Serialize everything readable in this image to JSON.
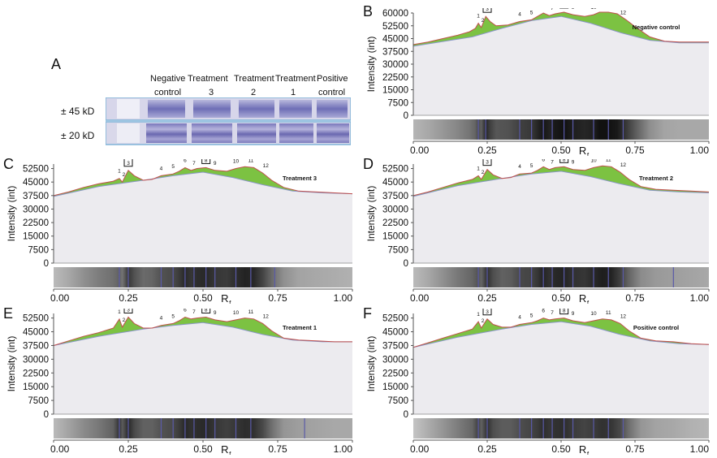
{
  "figure": {
    "gel": {
      "letter": "A",
      "lanes": [
        {
          "line1": "Negative",
          "line2": "control"
        },
        {
          "line1": "Treatment",
          "line2": "3"
        },
        {
          "line1": "Treatment",
          "line2": "2"
        },
        {
          "line1": "Treatment",
          "line2": "1"
        },
        {
          "line1": "Positive",
          "line2": "control"
        }
      ],
      "band_labels": [
        "± 45 kD",
        "± 20 kD"
      ]
    }
  },
  "colors": {
    "peak_fill": "#7cc242",
    "baseline_fill": "#ecebef",
    "profile_line": "#c0504d",
    "baseline_line": "#8a97c7",
    "axis": "#555555",
    "gel_stain": "#5a5aa8"
  },
  "chart_data": [
    {
      "type": "area",
      "panel": "B",
      "title": "Negative control",
      "xlabel": "R",
      "xlabel_sub": "f",
      "ylabel": "Intensity (int)",
      "xlim": [
        0,
        1
      ],
      "ylim": [
        0,
        60000
      ],
      "xticks": [
        "0.00",
        "0.25",
        "0.50",
        "0.75",
        "1.00"
      ],
      "yticks": [
        "60000",
        "52500",
        "45000",
        "37500",
        "30000",
        "22500",
        "15000",
        "7500",
        "0"
      ],
      "boxed_peaks": [
        "3",
        "8"
      ],
      "peaks": [
        {
          "label": "1",
          "x": 0.22
        },
        {
          "label": "2",
          "x": 0.235
        },
        {
          "label": "3",
          "x": 0.25
        },
        {
          "label": "4",
          "x": 0.36
        },
        {
          "label": "5",
          "x": 0.4
        },
        {
          "label": "6",
          "x": 0.44
        },
        {
          "label": "7",
          "x": 0.47
        },
        {
          "label": "8",
          "x": 0.51
        },
        {
          "label": "9",
          "x": 0.54
        },
        {
          "label": "10",
          "x": 0.61
        },
        {
          "label": "11",
          "x": 0.66
        },
        {
          "label": "12",
          "x": 0.71
        }
      ],
      "profile": [
        [
          0,
          41500
        ],
        [
          0.05,
          43000
        ],
        [
          0.1,
          45000
        ],
        [
          0.15,
          47000
        ],
        [
          0.19,
          49000
        ],
        [
          0.21,
          51000
        ],
        [
          0.22,
          54000
        ],
        [
          0.23,
          51500
        ],
        [
          0.245,
          58000
        ],
        [
          0.26,
          55000
        ],
        [
          0.28,
          52500
        ],
        [
          0.32,
          53000
        ],
        [
          0.36,
          55000
        ],
        [
          0.4,
          56000
        ],
        [
          0.42,
          58000
        ],
        [
          0.44,
          60000
        ],
        [
          0.46,
          58500
        ],
        [
          0.48,
          59500
        ],
        [
          0.51,
          60500
        ],
        [
          0.54,
          59000
        ],
        [
          0.58,
          58000
        ],
        [
          0.61,
          59000
        ],
        [
          0.63,
          60500
        ],
        [
          0.66,
          60500
        ],
        [
          0.69,
          59500
        ],
        [
          0.72,
          56000
        ],
        [
          0.75,
          52000
        ],
        [
          0.8,
          46000
        ],
        [
          0.85,
          43500
        ],
        [
          0.9,
          43000
        ],
        [
          0.95,
          43000
        ],
        [
          1.0,
          43000
        ]
      ],
      "baseline": [
        [
          0,
          40500
        ],
        [
          0.2,
          46000
        ],
        [
          0.3,
          51000
        ],
        [
          0.4,
          55500
        ],
        [
          0.5,
          58000
        ],
        [
          0.6,
          54000
        ],
        [
          0.7,
          48500
        ],
        [
          0.8,
          44000
        ],
        [
          0.9,
          42500
        ],
        [
          1.0,
          42500
        ]
      ],
      "lane_bands": [
        0.22,
        0.245,
        0.36,
        0.4,
        0.44,
        0.47,
        0.51,
        0.54,
        0.61,
        0.66,
        0.71
      ]
    },
    {
      "type": "area",
      "panel": "C",
      "title": "Treatment 3",
      "xlabel": "R",
      "xlabel_sub": "f",
      "ylabel": "Intensity (int)",
      "xlim": [
        0,
        1
      ],
      "ylim": [
        0,
        55000
      ],
      "xticks": [
        "0.00",
        "0.25",
        "0.50",
        "0.75",
        "1.00"
      ],
      "yticks": [
        "52500",
        "45000",
        "37500",
        "30000",
        "22500",
        "15000",
        "7500",
        "0"
      ],
      "boxed_peaks": [
        "3",
        "8"
      ],
      "peaks": [
        {
          "label": "1",
          "x": 0.22
        },
        {
          "label": "2",
          "x": 0.235
        },
        {
          "label": "3",
          "x": 0.25
        },
        {
          "label": "4",
          "x": 0.36
        },
        {
          "label": "5",
          "x": 0.4
        },
        {
          "label": "6",
          "x": 0.44
        },
        {
          "label": "7",
          "x": 0.47
        },
        {
          "label": "8",
          "x": 0.51
        },
        {
          "label": "9",
          "x": 0.54
        },
        {
          "label": "10",
          "x": 0.61
        },
        {
          "label": "11",
          "x": 0.66
        },
        {
          "label": "12",
          "x": 0.71
        }
      ],
      "profile": [
        [
          0,
          37500
        ],
        [
          0.05,
          39500
        ],
        [
          0.1,
          42000
        ],
        [
          0.15,
          44000
        ],
        [
          0.2,
          45500
        ],
        [
          0.22,
          47000
        ],
        [
          0.23,
          45000
        ],
        [
          0.25,
          51500
        ],
        [
          0.27,
          48500
        ],
        [
          0.3,
          46000
        ],
        [
          0.33,
          46500
        ],
        [
          0.36,
          48500
        ],
        [
          0.4,
          49500
        ],
        [
          0.42,
          51000
        ],
        [
          0.44,
          53000
        ],
        [
          0.46,
          51500
        ],
        [
          0.48,
          52500
        ],
        [
          0.51,
          53000
        ],
        [
          0.54,
          51500
        ],
        [
          0.58,
          51000
        ],
        [
          0.61,
          52500
        ],
        [
          0.64,
          53500
        ],
        [
          0.67,
          53000
        ],
        [
          0.7,
          50000
        ],
        [
          0.73,
          46000
        ],
        [
          0.77,
          42000
        ],
        [
          0.82,
          40000
        ],
        [
          0.88,
          39500
        ],
        [
          0.94,
          39000
        ],
        [
          1.0,
          38500
        ]
      ],
      "baseline": [
        [
          0,
          37000
        ],
        [
          0.15,
          42500
        ],
        [
          0.3,
          46000
        ],
        [
          0.4,
          48500
        ],
        [
          0.5,
          50500
        ],
        [
          0.6,
          47500
        ],
        [
          0.7,
          43500
        ],
        [
          0.8,
          40000
        ],
        [
          0.9,
          39000
        ],
        [
          1.0,
          38500
        ]
      ],
      "lane_bands": [
        0.22,
        0.25,
        0.36,
        0.4,
        0.44,
        0.47,
        0.51,
        0.54,
        0.61,
        0.66,
        0.74
      ]
    },
    {
      "type": "area",
      "panel": "D",
      "title": "Treatment 2",
      "xlabel": "R",
      "xlabel_sub": "f",
      "ylabel": "Intensity (int)",
      "xlim": [
        0,
        1
      ],
      "ylim": [
        0,
        55000
      ],
      "xticks": [
        "0.00",
        "0.25",
        "0.50",
        "0.75",
        "1.00"
      ],
      "yticks": [
        "52500",
        "45000",
        "37500",
        "30000",
        "22500",
        "15000",
        "7500",
        "0"
      ],
      "boxed_peaks": [
        "3",
        "8"
      ],
      "peaks": [
        {
          "label": "1",
          "x": 0.22
        },
        {
          "label": "2",
          "x": 0.235
        },
        {
          "label": "3",
          "x": 0.25
        },
        {
          "label": "4",
          "x": 0.36
        },
        {
          "label": "5",
          "x": 0.4
        },
        {
          "label": "6",
          "x": 0.44
        },
        {
          "label": "7",
          "x": 0.47
        },
        {
          "label": "8",
          "x": 0.51
        },
        {
          "label": "9",
          "x": 0.54
        },
        {
          "label": "10",
          "x": 0.61
        },
        {
          "label": "11",
          "x": 0.66
        },
        {
          "label": "12",
          "x": 0.71
        }
      ],
      "profile": [
        [
          0,
          37500
        ],
        [
          0.05,
          39500
        ],
        [
          0.1,
          42000
        ],
        [
          0.15,
          44500
        ],
        [
          0.2,
          46500
        ],
        [
          0.22,
          48500
        ],
        [
          0.23,
          46500
        ],
        [
          0.25,
          52000
        ],
        [
          0.27,
          49000
        ],
        [
          0.3,
          47000
        ],
        [
          0.33,
          47500
        ],
        [
          0.36,
          49500
        ],
        [
          0.4,
          50000
        ],
        [
          0.42,
          51500
        ],
        [
          0.44,
          53500
        ],
        [
          0.46,
          52000
        ],
        [
          0.48,
          53000
        ],
        [
          0.51,
          53500
        ],
        [
          0.54,
          52000
        ],
        [
          0.58,
          51500
        ],
        [
          0.61,
          53000
        ],
        [
          0.64,
          54000
        ],
        [
          0.67,
          53500
        ],
        [
          0.7,
          50500
        ],
        [
          0.73,
          46500
        ],
        [
          0.77,
          42500
        ],
        [
          0.82,
          41000
        ],
        [
          0.88,
          40500
        ],
        [
          0.94,
          40000
        ],
        [
          1.0,
          39500
        ]
      ],
      "baseline": [
        [
          0,
          37000
        ],
        [
          0.15,
          43000
        ],
        [
          0.3,
          47000
        ],
        [
          0.4,
          49500
        ],
        [
          0.5,
          51000
        ],
        [
          0.6,
          48000
        ],
        [
          0.7,
          44000
        ],
        [
          0.8,
          40500
        ],
        [
          0.9,
          39500
        ],
        [
          1.0,
          39000
        ]
      ],
      "lane_bands": [
        0.22,
        0.25,
        0.36,
        0.4,
        0.44,
        0.47,
        0.51,
        0.54,
        0.61,
        0.66,
        0.71,
        0.88
      ]
    },
    {
      "type": "area",
      "panel": "E",
      "title": "Treatment 1",
      "xlabel": "R",
      "xlabel_sub": "f",
      "ylabel": "Intensity (int)",
      "xlim": [
        0,
        1
      ],
      "ylim": [
        0,
        55000
      ],
      "xticks": [
        "0.00",
        "0.25",
        "0.50",
        "0.75",
        "1.00"
      ],
      "yticks": [
        "52500",
        "45000",
        "37500",
        "30000",
        "22500",
        "15000",
        "7500",
        "0"
      ],
      "boxed_peaks": [
        "3",
        "8"
      ],
      "peaks": [
        {
          "label": "1",
          "x": 0.22
        },
        {
          "label": "2",
          "x": 0.235
        },
        {
          "label": "3",
          "x": 0.25
        },
        {
          "label": "4",
          "x": 0.36
        },
        {
          "label": "5",
          "x": 0.4
        },
        {
          "label": "6",
          "x": 0.44
        },
        {
          "label": "7",
          "x": 0.47
        },
        {
          "label": "8",
          "x": 0.51
        },
        {
          "label": "9",
          "x": 0.54
        },
        {
          "label": "10",
          "x": 0.61
        },
        {
          "label": "11",
          "x": 0.66
        },
        {
          "label": "12",
          "x": 0.71
        }
      ],
      "profile": [
        [
          0,
          37500
        ],
        [
          0.05,
          40000
        ],
        [
          0.1,
          42500
        ],
        [
          0.15,
          44500
        ],
        [
          0.2,
          47000
        ],
        [
          0.22,
          52000
        ],
        [
          0.23,
          47500
        ],
        [
          0.25,
          53000
        ],
        [
          0.27,
          49500
        ],
        [
          0.3,
          47000
        ],
        [
          0.33,
          47000
        ],
        [
          0.36,
          48500
        ],
        [
          0.4,
          49500
        ],
        [
          0.42,
          51000
        ],
        [
          0.44,
          53000
        ],
        [
          0.46,
          52000
        ],
        [
          0.48,
          52500
        ],
        [
          0.51,
          53000
        ],
        [
          0.54,
          51500
        ],
        [
          0.58,
          50500
        ],
        [
          0.61,
          51500
        ],
        [
          0.64,
          52500
        ],
        [
          0.67,
          52000
        ],
        [
          0.7,
          49500
        ],
        [
          0.73,
          45500
        ],
        [
          0.77,
          41500
        ],
        [
          0.82,
          40500
        ],
        [
          0.88,
          40000
        ],
        [
          0.94,
          39500
        ],
        [
          1.0,
          39500
        ]
      ],
      "baseline": [
        [
          0,
          37500
        ],
        [
          0.15,
          42500
        ],
        [
          0.3,
          46500
        ],
        [
          0.4,
          48500
        ],
        [
          0.5,
          50000
        ],
        [
          0.6,
          47500
        ],
        [
          0.7,
          43500
        ],
        [
          0.8,
          40500
        ],
        [
          0.9,
          39500
        ],
        [
          1.0,
          39500
        ]
      ],
      "lane_bands": [
        0.22,
        0.25,
        0.36,
        0.4,
        0.44,
        0.47,
        0.51,
        0.54,
        0.61,
        0.66,
        0.84
      ]
    },
    {
      "type": "area",
      "panel": "F",
      "title": "Positive control",
      "xlabel": "R",
      "xlabel_sub": "f",
      "ylabel": "Intensity (int)",
      "xlim": [
        0,
        1
      ],
      "ylim": [
        0,
        55000
      ],
      "xticks": [
        "0.00",
        "0.25",
        "0.50",
        "0.75",
        "1.00"
      ],
      "yticks": [
        "52500",
        "45000",
        "37500",
        "30000",
        "22500",
        "15000",
        "7500",
        "0"
      ],
      "boxed_peaks": [
        "3",
        "8"
      ],
      "peaks": [
        {
          "label": "1",
          "x": 0.22
        },
        {
          "label": "2",
          "x": 0.235
        },
        {
          "label": "3",
          "x": 0.25
        },
        {
          "label": "4",
          "x": 0.36
        },
        {
          "label": "5",
          "x": 0.4
        },
        {
          "label": "6",
          "x": 0.44
        },
        {
          "label": "7",
          "x": 0.47
        },
        {
          "label": "8",
          "x": 0.51
        },
        {
          "label": "9",
          "x": 0.54
        },
        {
          "label": "10",
          "x": 0.61
        },
        {
          "label": "11",
          "x": 0.66
        },
        {
          "label": "12",
          "x": 0.71
        }
      ],
      "profile": [
        [
          0,
          36500
        ],
        [
          0.05,
          39000
        ],
        [
          0.1,
          41500
        ],
        [
          0.15,
          44000
        ],
        [
          0.2,
          46500
        ],
        [
          0.22,
          50500
        ],
        [
          0.23,
          47000
        ],
        [
          0.25,
          52000
        ],
        [
          0.27,
          49000
        ],
        [
          0.3,
          47500
        ],
        [
          0.33,
          47500
        ],
        [
          0.36,
          49000
        ],
        [
          0.4,
          50000
        ],
        [
          0.42,
          51000
        ],
        [
          0.44,
          52500
        ],
        [
          0.46,
          51500
        ],
        [
          0.48,
          52000
        ],
        [
          0.51,
          52500
        ],
        [
          0.54,
          51000
        ],
        [
          0.58,
          50000
        ],
        [
          0.61,
          51000
        ],
        [
          0.64,
          52000
        ],
        [
          0.67,
          51500
        ],
        [
          0.7,
          49500
        ],
        [
          0.73,
          45500
        ],
        [
          0.77,
          41500
        ],
        [
          0.82,
          40000
        ],
        [
          0.88,
          39500
        ],
        [
          0.94,
          38500
        ],
        [
          1.0,
          38000
        ]
      ],
      "baseline": [
        [
          0,
          36500
        ],
        [
          0.15,
          42000
        ],
        [
          0.3,
          46500
        ],
        [
          0.4,
          49000
        ],
        [
          0.5,
          50500
        ],
        [
          0.6,
          48000
        ],
        [
          0.7,
          43500
        ],
        [
          0.8,
          40000
        ],
        [
          0.9,
          38500
        ],
        [
          1.0,
          38000
        ]
      ],
      "lane_bands": [
        0.22,
        0.25,
        0.36,
        0.4,
        0.44,
        0.47,
        0.51,
        0.54,
        0.61,
        0.66,
        0.71
      ]
    }
  ]
}
